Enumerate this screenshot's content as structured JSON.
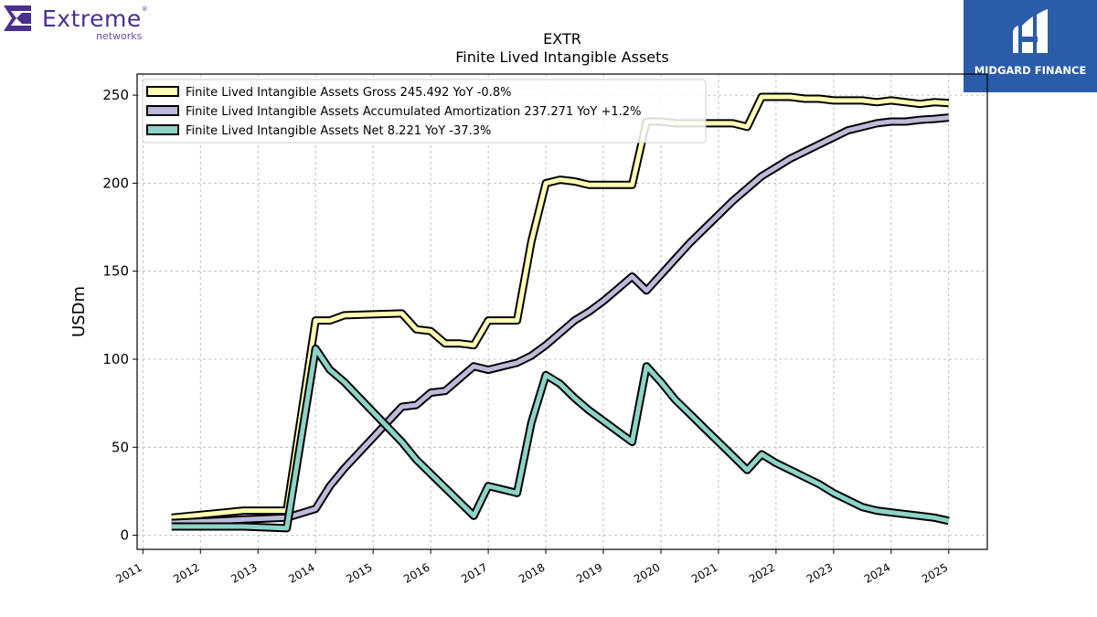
{
  "logos": {
    "left_brand": "Extreme",
    "left_sub": "networks",
    "right_brand": "MIDGARD FINANCE"
  },
  "chart_data": {
    "type": "line",
    "title": "EXTR",
    "subtitle": "Finite Lived Intangible Assets",
    "ylabel": "USDm",
    "xlabel": "",
    "xlim": [
      2010.9,
      2025.67
    ],
    "ylim": [
      -8,
      262
    ],
    "x_ticks": [
      "2011",
      "2012",
      "2013",
      "2014",
      "2015",
      "2016",
      "2017",
      "2018",
      "2019",
      "2020",
      "2021",
      "2022",
      "2023",
      "2024",
      "2025"
    ],
    "y_ticks": [
      0,
      50,
      100,
      150,
      200,
      250
    ],
    "grid": true,
    "legend_position": "top-left",
    "series": [
      {
        "name": "Finite Lived Intangible Assets Gross  245.492 YoY -0.8%",
        "color": "#ffffb3",
        "x": [
          2011.5,
          2012.75,
          2013.5,
          2014.0,
          2014.25,
          2014.5,
          2015.5,
          2015.75,
          2016.0,
          2016.25,
          2016.5,
          2016.75,
          2017.0,
          2017.25,
          2017.5,
          2017.75,
          2018.0,
          2018.25,
          2018.5,
          2018.75,
          2019.0,
          2019.25,
          2019.5,
          2019.75,
          2020.0,
          2020.25,
          2020.5,
          2020.75,
          2021.0,
          2021.25,
          2021.5,
          2021.75,
          2022.0,
          2022.25,
          2022.5,
          2022.75,
          2023.0,
          2023.25,
          2023.5,
          2023.75,
          2024.0,
          2024.25,
          2024.5,
          2024.75,
          2025.0
        ],
        "y": [
          10,
          14,
          14,
          122,
          122,
          125,
          126,
          117,
          116,
          109,
          109,
          108,
          122,
          122,
          122,
          167,
          200,
          202,
          201,
          199,
          199,
          199,
          199,
          235,
          235,
          234,
          234,
          234,
          234,
          234,
          232,
          249,
          249,
          249,
          248,
          248,
          247,
          247,
          247,
          246,
          247,
          246,
          245,
          246,
          245.5
        ]
      },
      {
        "name": "Finite Lived Intangible Assets Accumulated Amortization  237.271 YoY +1.2%",
        "color": "#bebada",
        "x": [
          2011.5,
          2012.75,
          2013.5,
          2014.0,
          2014.25,
          2014.5,
          2015.5,
          2015.75,
          2016.0,
          2016.25,
          2016.5,
          2016.75,
          2017.0,
          2017.25,
          2017.5,
          2017.75,
          2018.0,
          2018.25,
          2018.5,
          2018.75,
          2019.0,
          2019.25,
          2019.5,
          2019.75,
          2020.0,
          2020.25,
          2020.5,
          2020.75,
          2021.0,
          2021.25,
          2021.5,
          2021.75,
          2022.0,
          2022.25,
          2022.5,
          2022.75,
          2023.0,
          2023.25,
          2023.5,
          2023.75,
          2024.0,
          2024.25,
          2024.5,
          2024.75,
          2025.0
        ],
        "y": [
          7,
          9,
          10,
          15,
          28,
          38,
          73,
          74,
          81,
          82,
          89,
          96,
          94,
          96,
          98,
          102,
          108,
          115,
          122,
          127,
          133,
          140,
          147,
          139,
          148,
          157,
          166,
          174,
          182,
          190,
          197,
          204,
          209,
          214,
          218,
          222,
          226,
          230,
          232,
          234,
          235,
          235,
          236,
          236.5,
          237.3
        ]
      },
      {
        "name": "Finite Lived Intangible Assets Net  8.221 YoY -37.3%",
        "color": "#8dd3c7",
        "x": [
          2011.5,
          2012.75,
          2013.5,
          2014.0,
          2014.25,
          2014.5,
          2015.5,
          2015.75,
          2016.0,
          2016.25,
          2016.5,
          2016.75,
          2017.0,
          2017.25,
          2017.5,
          2017.75,
          2018.0,
          2018.25,
          2018.5,
          2018.75,
          2019.0,
          2019.25,
          2019.5,
          2019.75,
          2020.0,
          2020.25,
          2020.5,
          2020.75,
          2021.0,
          2021.25,
          2021.5,
          2021.75,
          2022.0,
          2022.25,
          2022.5,
          2022.75,
          2023.0,
          2023.25,
          2023.5,
          2023.75,
          2024.0,
          2024.25,
          2024.5,
          2024.75,
          2025.0
        ],
        "y": [
          5,
          5,
          4,
          106,
          94,
          87,
          53,
          43,
          35,
          27,
          19,
          11,
          28,
          26,
          24,
          64,
          91,
          86,
          78,
          71,
          65,
          59,
          53,
          96,
          87,
          77,
          69,
          61,
          53,
          45,
          37,
          46,
          41,
          37,
          33,
          29,
          24,
          20,
          16,
          14,
          13,
          12,
          11,
          10,
          8.2
        ]
      }
    ]
  }
}
